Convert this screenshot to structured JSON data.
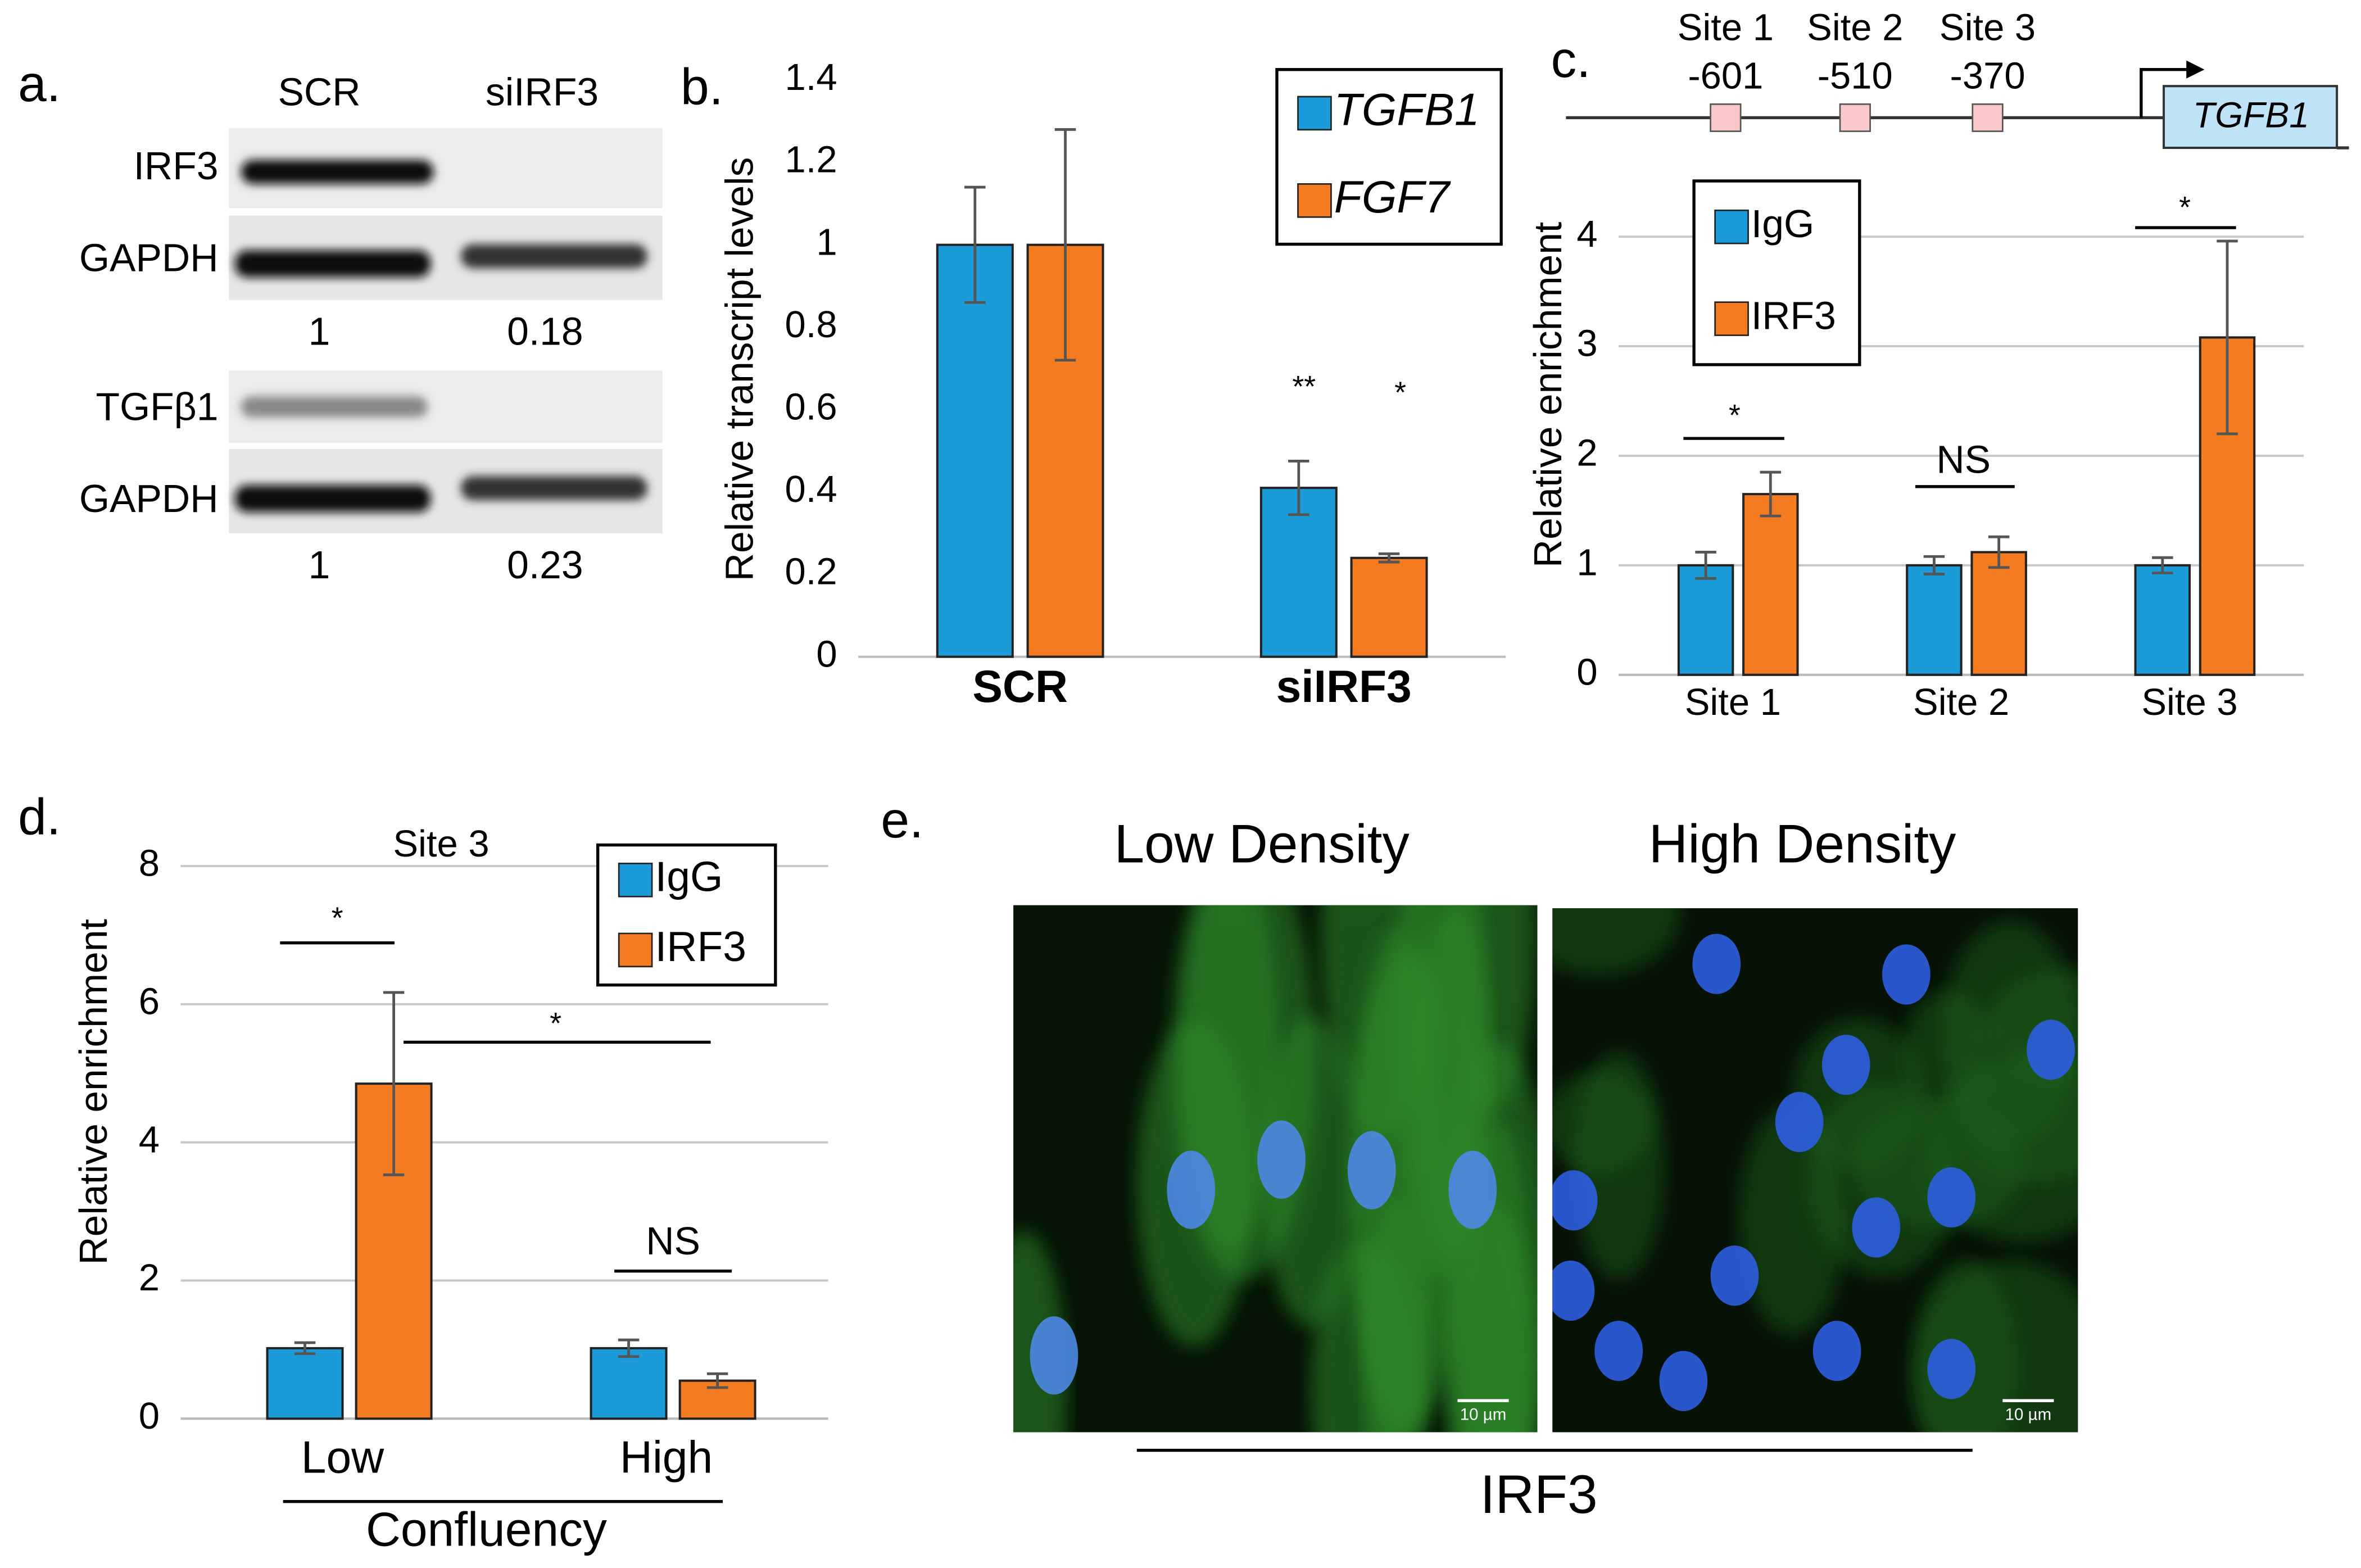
{
  "panel_labels": [
    "a.",
    "b.",
    "c.",
    "d.",
    "e."
  ],
  "blot": {
    "columns": [
      "SCR",
      "siIRF3"
    ],
    "rows": [
      "IRF3",
      "GAPDH",
      "TGFβ1",
      "GAPDH"
    ],
    "quantification": [
      [
        "1",
        "0.18"
      ],
      [
        "1",
        "0.23"
      ]
    ]
  },
  "promoter": {
    "sites": [
      {
        "name": "Site 1",
        "position": "-601"
      },
      {
        "name": "Site 2",
        "position": "-510"
      },
      {
        "name": "Site 3",
        "position": "-370"
      }
    ],
    "gene": "TGFB1"
  },
  "chart_data": [
    {
      "type": "bar",
      "ylabel": "Relative transcript levels",
      "categories": [
        "SCR",
        "siIRF3"
      ],
      "series": [
        {
          "name": "TGFB1",
          "color": "#1b9bd7",
          "values": [
            1,
            0.41
          ],
          "errors": [
            0.14,
            0.065
          ]
        },
        {
          "name": "FGF7",
          "color": "#f47b20",
          "values": [
            1,
            0.24
          ],
          "errors": [
            0.28,
            0.01
          ]
        }
      ],
      "ylim": [
        0,
        1.4
      ],
      "yticks": [
        0,
        0.2,
        0.4,
        0.6,
        0.8,
        1,
        1.2,
        1.4
      ],
      "grid": false,
      "legend": "upper right",
      "annotations": [
        "**",
        "*"
      ]
    },
    {
      "type": "bar",
      "ylabel": "Relative enrichment",
      "categories": [
        "Site 1",
        "Site 2",
        "Site 3"
      ],
      "series": [
        {
          "name": "IgG",
          "color": "#1b9bd7",
          "values": [
            1,
            1,
            1
          ],
          "errors": [
            0.12,
            0.08,
            0.07
          ]
        },
        {
          "name": "IRF3",
          "color": "#f47b20",
          "values": [
            1.65,
            1.12,
            3.08
          ],
          "errors": [
            0.2,
            0.14,
            0.88
          ]
        }
      ],
      "ylim": [
        0,
        4.5
      ],
      "yticks": [
        0,
        1,
        2,
        3,
        4
      ],
      "grid": true,
      "legend": "upper left",
      "annotations": [
        "*",
        "NS",
        "*"
      ]
    },
    {
      "type": "bar",
      "title": "Site 3",
      "ylabel": "Relative enrichment",
      "xlabel": "Confluency",
      "categories": [
        "Low",
        "High"
      ],
      "series": [
        {
          "name": "IgG",
          "color": "#1b9bd7",
          "values": [
            1.02,
            1.02
          ],
          "errors": [
            0.08,
            0.12
          ]
        },
        {
          "name": "IRF3",
          "color": "#f47b20",
          "values": [
            4.85,
            0.55
          ],
          "errors": [
            1.32,
            0.1
          ]
        }
      ],
      "ylim": [
        0,
        8
      ],
      "yticks": [
        0,
        2,
        4,
        6,
        8
      ],
      "grid": true,
      "legend": "upper right",
      "annotations": [
        "*",
        "*",
        "NS"
      ]
    }
  ],
  "imaging": {
    "columns": [
      "Low Density",
      "High Density"
    ],
    "scale_bars": [
      "10 µm",
      "10 µm"
    ],
    "stain": "IRF3"
  }
}
